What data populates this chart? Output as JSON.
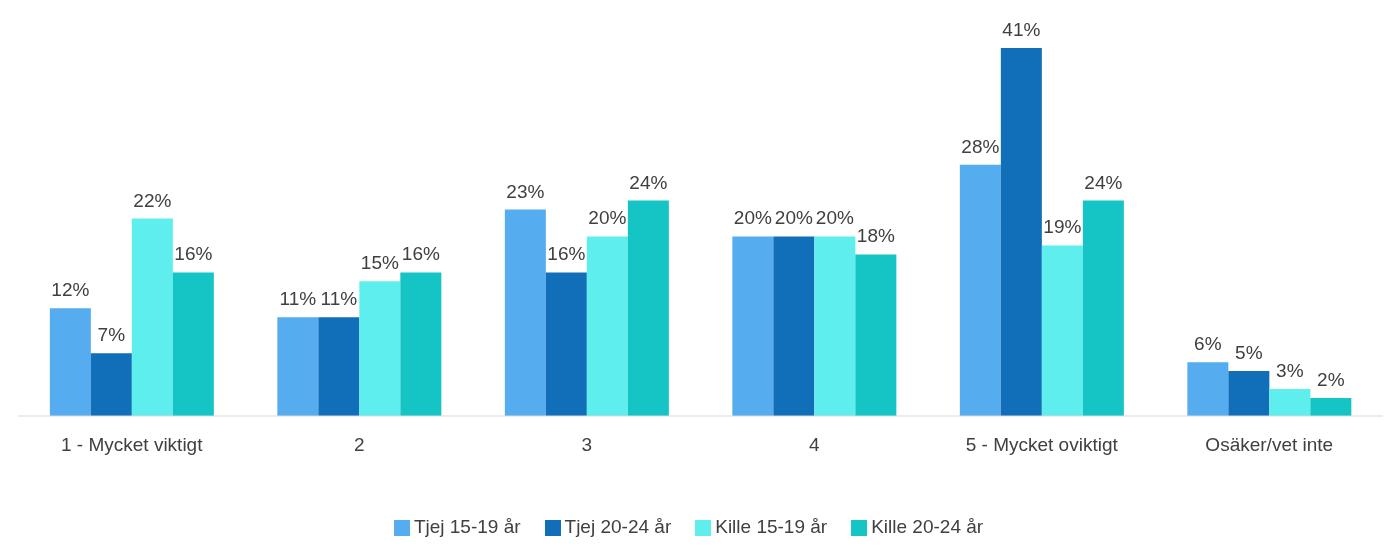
{
  "chart_data": {
    "type": "bar",
    "categories": [
      "1 - Mycket viktigt",
      "2",
      "3",
      "4",
      "5 - Mycket oviktigt",
      "Osäker/vet inte"
    ],
    "series": [
      {
        "name": "Tjej 15-19 år",
        "color": "#55acee",
        "values": [
          12,
          11,
          23,
          20,
          28,
          6
        ],
        "value_labels": [
          "12%",
          "11%",
          "23%",
          "20%",
          "28%",
          "6%"
        ]
      },
      {
        "name": "Tjej 20-24 år",
        "color": "#116eb8",
        "values": [
          7,
          11,
          16,
          20,
          41,
          5
        ],
        "value_labels": [
          "7%",
          "11%",
          "16%",
          "20%",
          "41%",
          "5%"
        ]
      },
      {
        "name": "Kille 15-19 år",
        "color": "#5eeeee",
        "values": [
          22,
          15,
          20,
          20,
          19,
          3
        ],
        "value_labels": [
          "22%",
          "15%",
          "20%",
          "20%",
          "19%",
          "3%"
        ]
      },
      {
        "name": "Kille 20-24 år",
        "color": "#15c4c4",
        "values": [
          16,
          16,
          24,
          18,
          24,
          2
        ],
        "value_labels": [
          "16%",
          "16%",
          "24%",
          "18%",
          "24%",
          "2%"
        ]
      }
    ],
    "grid": false,
    "legend": "bottom"
  }
}
